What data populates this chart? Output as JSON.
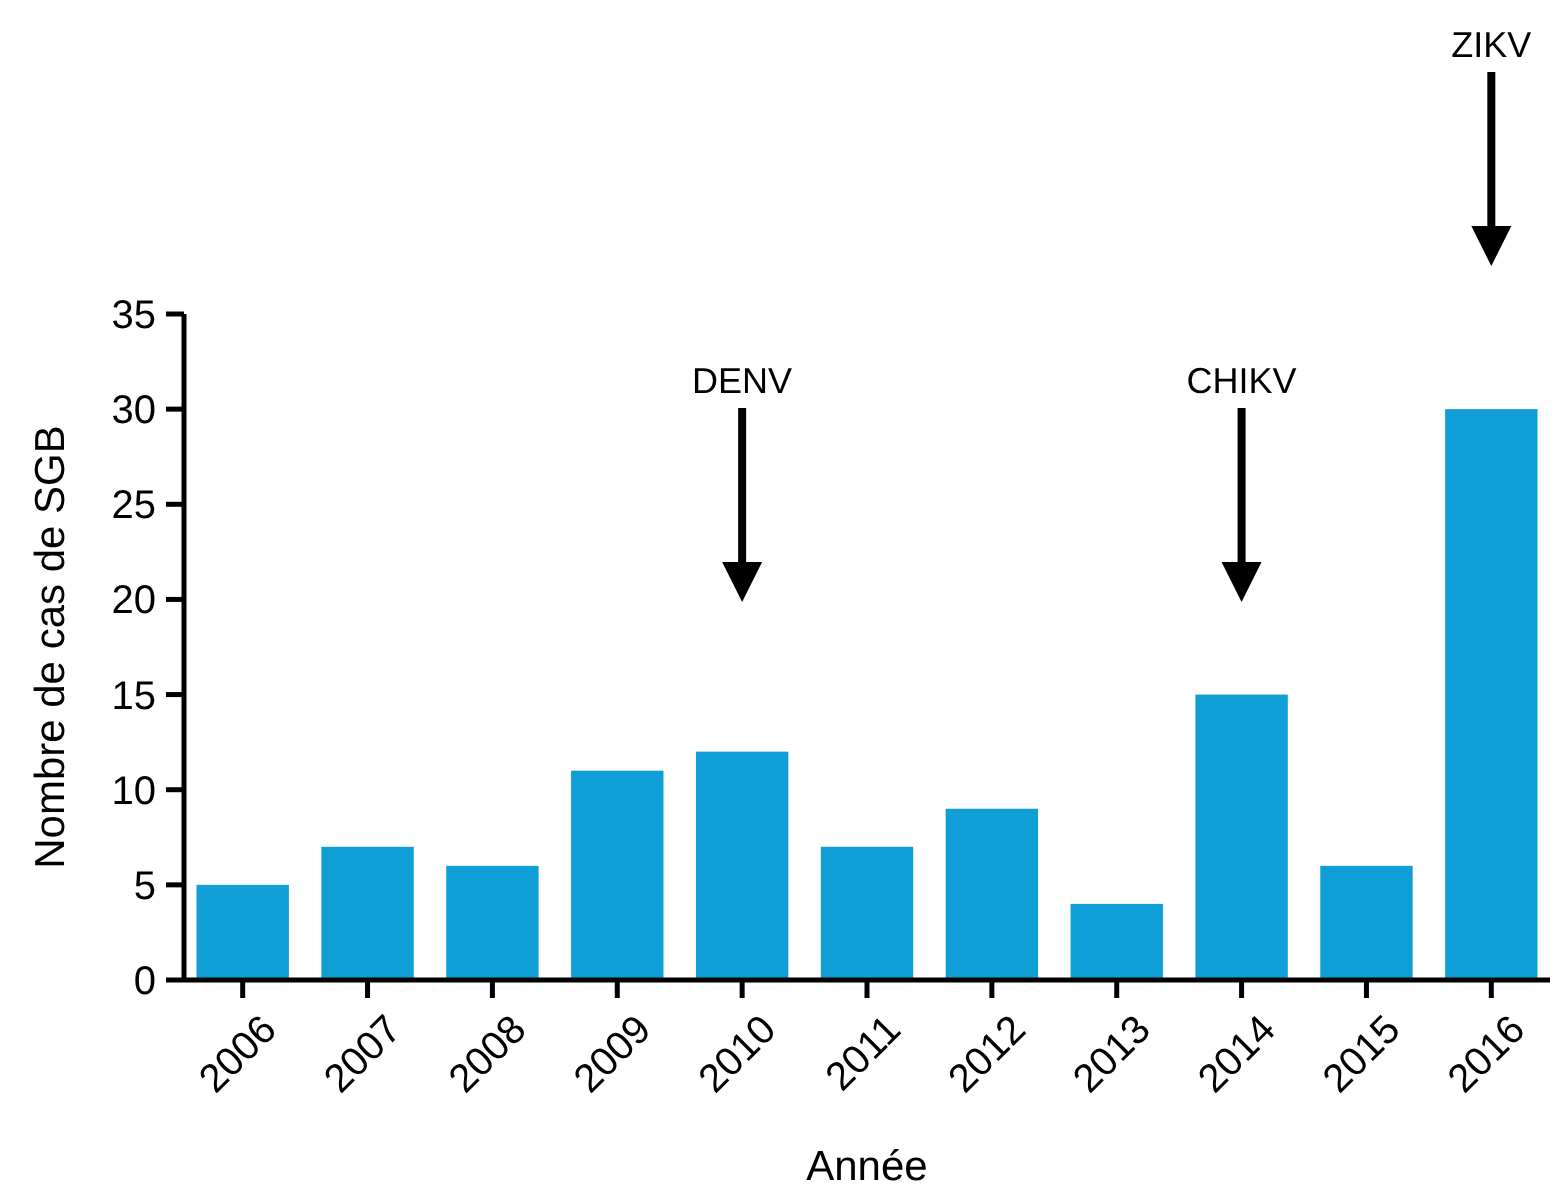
{
  "chart_data": {
    "type": "bar",
    "xlabel": "Année",
    "ylabel": "Nombre de cas de SGB",
    "categories": [
      "2006",
      "2007",
      "2008",
      "2009",
      "2010",
      "2011",
      "2012",
      "2013",
      "2014",
      "2015",
      "2016"
    ],
    "values": [
      5,
      7,
      6,
      11,
      12,
      7,
      9,
      4,
      15,
      6,
      30
    ],
    "color": "#0f9fd6",
    "ylim": [
      0,
      35
    ],
    "yticks": [
      0,
      5,
      10,
      15,
      20,
      25,
      30,
      35
    ],
    "grid": false,
    "annotations": [
      "DENV",
      "CHIKV",
      "ZIKV"
    ]
  }
}
